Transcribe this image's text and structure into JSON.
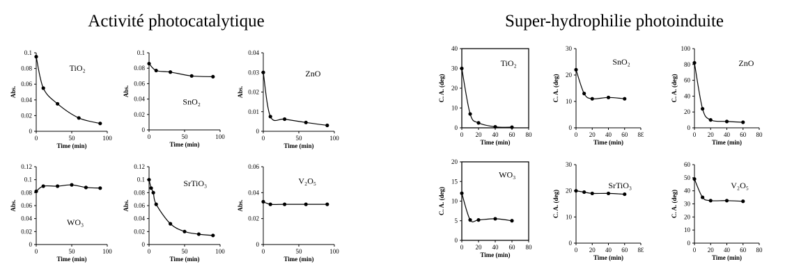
{
  "titles": {
    "left": "Activité photocatalytique",
    "right": "Super-hydrophilie photoinduite"
  },
  "chart_data": [
    {
      "type": "scatter",
      "group": "left",
      "panel": "TiO2",
      "label": "TiO₂",
      "xlabel": "Time (min)",
      "ylabel": "Abs.",
      "xlim": [
        0,
        100
      ],
      "ylim": [
        0,
        0.1
      ],
      "xticks": [
        "0",
        "50",
        "100"
      ],
      "yticks": [
        "0",
        "0.02",
        "0.04",
        "0.06",
        "0.08",
        "0.1"
      ],
      "points": [
        [
          0,
          0.095
        ],
        [
          10,
          0.055
        ],
        [
          30,
          0.035
        ],
        [
          60,
          0.017
        ],
        [
          90,
          0.01
        ]
      ]
    },
    {
      "type": "scatter",
      "group": "left",
      "panel": "SnO2",
      "label": "SnO₂",
      "xlabel": "Time (min)",
      "ylabel": "Abs.",
      "xlim": [
        0,
        100
      ],
      "ylim": [
        0,
        0.1
      ],
      "xticks": [
        "0",
        "50",
        "100"
      ],
      "yticks": [
        "0",
        "0.02",
        "0.04",
        "0.06",
        "0.08",
        "0.1"
      ],
      "points": [
        [
          0,
          0.086
        ],
        [
          10,
          0.077
        ],
        [
          30,
          0.075
        ],
        [
          60,
          0.07
        ],
        [
          90,
          0.069
        ]
      ]
    },
    {
      "type": "scatter",
      "group": "left",
      "panel": "ZnO",
      "label": "ZnO",
      "xlabel": "Time (min)",
      "ylabel": "Abs.",
      "xlim": [
        0,
        100
      ],
      "ylim": [
        0,
        0.04
      ],
      "xticks": [
        "0",
        "50",
        "100"
      ],
      "yticks": [
        "0",
        "0.01",
        "0.02",
        "0.03",
        "0.04"
      ],
      "points": [
        [
          0,
          0.03
        ],
        [
          10,
          0.0075
        ],
        [
          30,
          0.0062
        ],
        [
          60,
          0.0045
        ],
        [
          90,
          0.003
        ]
      ]
    },
    {
      "type": "scatter",
      "group": "left",
      "panel": "WO3",
      "label": "WO₃",
      "xlabel": "Time (min)",
      "ylabel": "Abs.",
      "xlim": [
        0,
        100
      ],
      "ylim": [
        0,
        0.12
      ],
      "xticks": [
        "0",
        "50",
        "100"
      ],
      "yticks": [
        "0",
        "0.02",
        "0.04",
        "0.06",
        "0.08",
        "0.1",
        "0.12"
      ],
      "points": [
        [
          0,
          0.082
        ],
        [
          10,
          0.09
        ],
        [
          30,
          0.09
        ],
        [
          50,
          0.092
        ],
        [
          70,
          0.088
        ],
        [
          90,
          0.087
        ]
      ]
    },
    {
      "type": "scatter",
      "group": "left",
      "panel": "SrTiO3",
      "label": "SrTiO₃",
      "xlabel": "Time (min)",
      "ylabel": "Abs.",
      "xlim": [
        0,
        100
      ],
      "ylim": [
        0,
        0.12
      ],
      "xticks": [
        "0",
        "50",
        "100"
      ],
      "yticks": [
        "0",
        "0.02",
        "0.04",
        "0.06",
        "0.08",
        "0.1",
        "0.12"
      ],
      "points": [
        [
          0,
          0.1
        ],
        [
          3,
          0.087
        ],
        [
          6,
          0.08
        ],
        [
          10,
          0.062
        ],
        [
          30,
          0.032
        ],
        [
          50,
          0.02
        ],
        [
          70,
          0.016
        ],
        [
          90,
          0.014
        ]
      ]
    },
    {
      "type": "scatter",
      "group": "left",
      "panel": "V2O5",
      "label": "V₂O₅",
      "xlabel": "Time (min)",
      "ylabel": "Abs.",
      "xlim": [
        0,
        100
      ],
      "ylim": [
        0,
        0.06
      ],
      "xticks": [
        "0",
        "50",
        "100"
      ],
      "yticks": [
        "0",
        "0.02",
        "0.04",
        "0.06"
      ],
      "points": [
        [
          0,
          0.033
        ],
        [
          10,
          0.031
        ],
        [
          30,
          0.031
        ],
        [
          60,
          0.031
        ],
        [
          90,
          0.031
        ]
      ]
    },
    {
      "type": "scatter",
      "group": "right",
      "panel": "TiO2",
      "label": "TiO₂",
      "xlabel": "Time (min)",
      "ylabel": "C. A. (deg)",
      "xlim": [
        0,
        80
      ],
      "ylim": [
        0,
        40
      ],
      "xticks": [
        "0",
        "20",
        "40",
        "60",
        "80"
      ],
      "yticks": [
        "0",
        "10",
        "20",
        "30",
        "40"
      ],
      "points": [
        [
          0,
          30
        ],
        [
          10,
          7
        ],
        [
          20,
          2.5
        ],
        [
          40,
          0.5
        ],
        [
          60,
          0.3
        ]
      ]
    },
    {
      "type": "scatter",
      "group": "right",
      "panel": "SnO2",
      "label": "SnO₂",
      "xlabel": "Time (min)",
      "ylabel": "C. A. (deg)",
      "xlim": [
        0,
        80
      ],
      "ylim": [
        0,
        30
      ],
      "xticks": [
        "0",
        "20",
        "40",
        "60",
        "8Ɛ"
      ],
      "yticks": [
        "0",
        "10",
        "20",
        "30"
      ],
      "points": [
        [
          0,
          22
        ],
        [
          10,
          13
        ],
        [
          20,
          11
        ],
        [
          40,
          11.5
        ],
        [
          60,
          11
        ]
      ]
    },
    {
      "type": "scatter",
      "group": "right",
      "panel": "ZnO",
      "label": "ZnO",
      "xlabel": "Time (min)",
      "ylabel": "C. A. (deg)",
      "xlim": [
        0,
        80
      ],
      "ylim": [
        0,
        100
      ],
      "xticks": [
        "0",
        "20",
        "40",
        "60",
        "80"
      ],
      "yticks": [
        "0",
        "20",
        "40",
        "60",
        "80",
        "100"
      ],
      "points": [
        [
          0,
          82
        ],
        [
          10,
          24
        ],
        [
          20,
          10
        ],
        [
          40,
          8
        ],
        [
          60,
          7
        ]
      ]
    },
    {
      "type": "scatter",
      "group": "right",
      "panel": "WO3",
      "label": "WO₃",
      "xlabel": "Time (min)",
      "ylabel": "C. A. (deg)",
      "xlim": [
        0,
        80
      ],
      "ylim": [
        0,
        20
      ],
      "xticks": [
        "0",
        "20",
        "40",
        "60",
        "80"
      ],
      "yticks": [
        "0",
        "5",
        "10",
        "15",
        "20"
      ],
      "points": [
        [
          0,
          12
        ],
        [
          10,
          5.2
        ],
        [
          20,
          5.2
        ],
        [
          40,
          5.5
        ],
        [
          60,
          5
        ]
      ]
    },
    {
      "type": "scatter",
      "group": "right",
      "panel": "SrTiO3",
      "label": "SrTiO₃",
      "xlabel": "Time (min)",
      "ylabel": "C. A. (deg)",
      "xlim": [
        0,
        80
      ],
      "ylim": [
        0,
        30
      ],
      "xticks": [
        "0",
        "20",
        "40",
        "60",
        "8Ɛ"
      ],
      "yticks": [
        "0",
        "10",
        "20",
        "30"
      ],
      "points": [
        [
          0,
          20
        ],
        [
          10,
          19.5
        ],
        [
          20,
          19
        ],
        [
          40,
          19
        ],
        [
          60,
          18.7
        ]
      ]
    },
    {
      "type": "scatter",
      "group": "right",
      "panel": "V2O5",
      "label": "V₂O₅",
      "xlabel": "Time (min)",
      "ylabel": "C. A. (deg)",
      "xlim": [
        0,
        80
      ],
      "ylim": [
        0,
        60
      ],
      "xticks": [
        "0",
        "20",
        "40",
        "60",
        "80"
      ],
      "yticks": [
        "0",
        "10",
        "20",
        "30",
        "40",
        "50",
        "60"
      ],
      "points": [
        [
          0,
          49
        ],
        [
          10,
          35
        ],
        [
          20,
          32.5
        ],
        [
          40,
          32.5
        ],
        [
          60,
          32
        ]
      ]
    }
  ]
}
